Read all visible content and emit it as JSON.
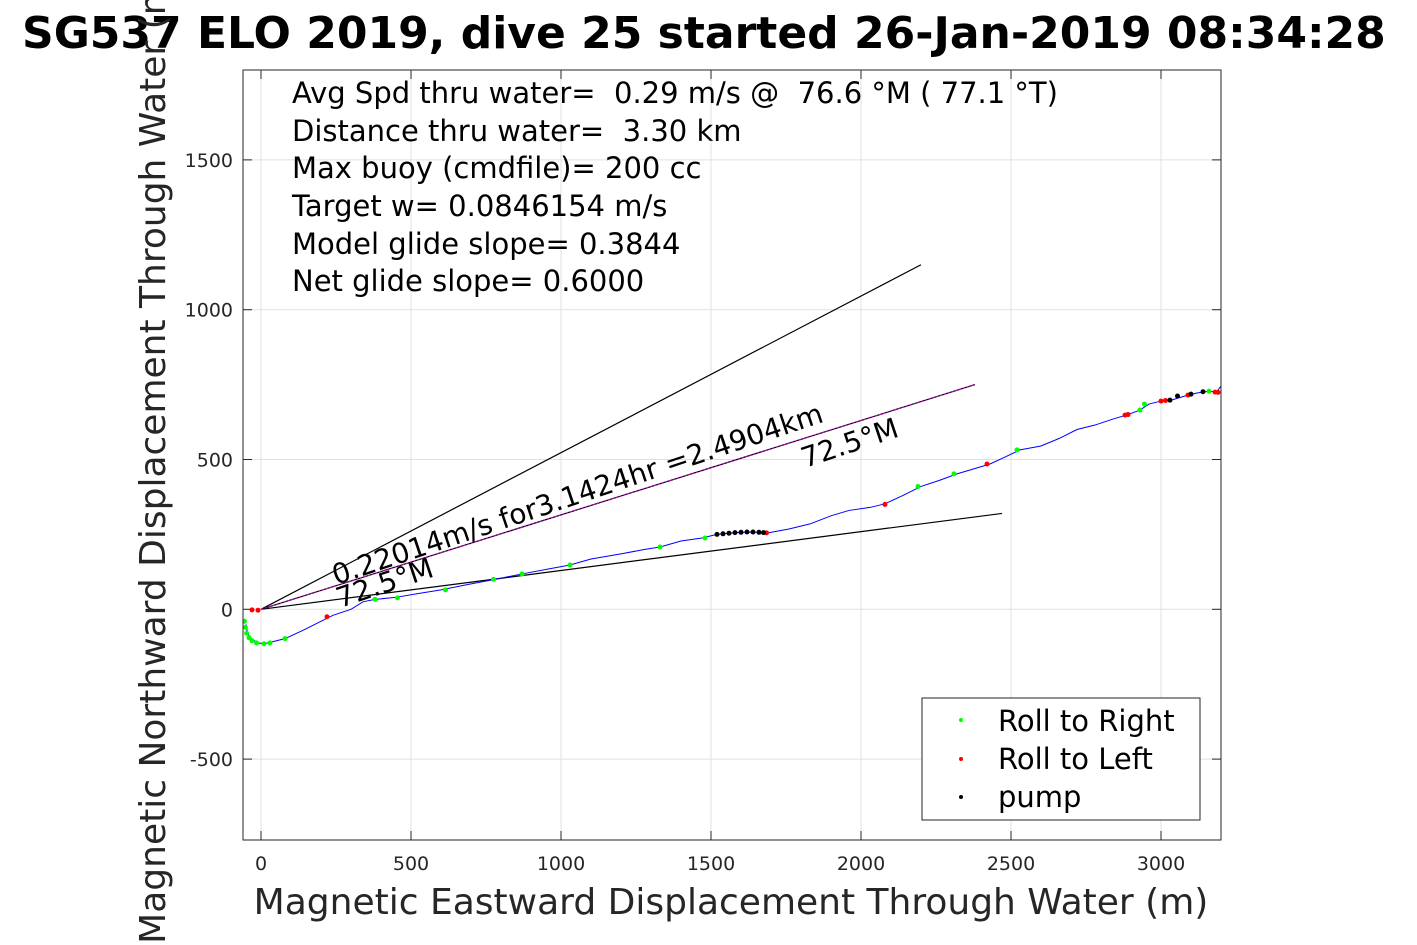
{
  "chart_data": {
    "type": "scatter",
    "title": "SG537 ELO 2019, dive 25 started 26-Jan-2019 08:34:28",
    "xlabel": "Magnetic Eastward Displacement Through Water (m)",
    "ylabel": "Magnetic Northward Displacement Through Water (m)",
    "xlim": [
      -60,
      3200
    ],
    "ylim": [
      -770,
      1800
    ],
    "xticks": [
      0,
      500,
      1000,
      1500,
      2000,
      2500,
      3000
    ],
    "yticks": [
      -500,
      0,
      500,
      1000,
      1500
    ],
    "xtick_labels": [
      "0",
      "500",
      "1000",
      "1500",
      "2000",
      "2500",
      "3000"
    ],
    "ytick_labels": [
      "-500",
      "0",
      "500",
      "1000",
      "1500"
    ],
    "grid": true,
    "legend_position": "bottom-right",
    "info_lines": [
      "Avg Spd thru water=  0.29 m/s @  76.6 °M ( 77.1 °T)",
      "Distance thru water=  3.30 km",
      "Max buoy (cmdfile)= 200 cc",
      "Target w= 0.0846154 m/s",
      "Model glide slope= 0.3844",
      "Net glide slope= 0.6000"
    ],
    "annotations": {
      "speed_text": "0.22014m/s for3.1424hr =2.4904km",
      "heading_upper": "72.5°M",
      "heading_lower": "72.5°M"
    },
    "reference_lines": [
      {
        "name": "upper-bound",
        "color": "#000000",
        "points": [
          [
            0,
            0
          ],
          [
            2200,
            1150
          ]
        ]
      },
      {
        "name": "lower-bound",
        "color": "#000000",
        "points": [
          [
            0,
            0
          ],
          [
            2470,
            320
          ]
        ]
      },
      {
        "name": "heading-line",
        "color": "#000000",
        "points": [
          [
            0,
            0
          ],
          [
            2380,
            750
          ]
        ]
      },
      {
        "name": "heading-line-overlay",
        "color": "#cc00cc",
        "points": [
          [
            0,
            0
          ],
          [
            2380,
            750
          ]
        ]
      }
    ],
    "track": {
      "color": "#0000ff",
      "points": [
        [
          -50,
          -50
        ],
        [
          -45,
          -80
        ],
        [
          -30,
          -100
        ],
        [
          -10,
          -112
        ],
        [
          10,
          -115
        ],
        [
          40,
          -108
        ],
        [
          80,
          -98
        ],
        [
          140,
          -70
        ],
        [
          200,
          -40
        ],
        [
          240,
          -20
        ],
        [
          300,
          0
        ],
        [
          340,
          25
        ],
        [
          380,
          33
        ],
        [
          450,
          40
        ],
        [
          520,
          52
        ],
        [
          600,
          65
        ],
        [
          700,
          85
        ],
        [
          780,
          100
        ],
        [
          870,
          118
        ],
        [
          960,
          135
        ],
        [
          1030,
          148
        ],
        [
          1100,
          168
        ],
        [
          1200,
          185
        ],
        [
          1280,
          200
        ],
        [
          1330,
          208
        ],
        [
          1400,
          228
        ],
        [
          1470,
          238
        ],
        [
          1520,
          250
        ],
        [
          1580,
          256
        ],
        [
          1640,
          258
        ],
        [
          1690,
          255
        ],
        [
          1760,
          268
        ],
        [
          1830,
          285
        ],
        [
          1900,
          312
        ],
        [
          1960,
          330
        ],
        [
          2030,
          340
        ],
        [
          2080,
          352
        ],
        [
          2140,
          380
        ],
        [
          2200,
          410
        ],
        [
          2260,
          430
        ],
        [
          2320,
          452
        ],
        [
          2380,
          470
        ],
        [
          2430,
          485
        ],
        [
          2480,
          508
        ],
        [
          2530,
          532
        ],
        [
          2600,
          545
        ],
        [
          2660,
          570
        ],
        [
          2720,
          600
        ],
        [
          2780,
          615
        ],
        [
          2840,
          635
        ],
        [
          2890,
          650
        ],
        [
          2930,
          665
        ],
        [
          2960,
          685
        ],
        [
          3000,
          695
        ],
        [
          3040,
          700
        ],
        [
          3080,
          712
        ],
        [
          3120,
          722
        ],
        [
          3160,
          728
        ],
        [
          3185,
          725
        ],
        [
          3200,
          745
        ],
        [
          3210,
          760
        ]
      ]
    },
    "series": [
      {
        "name": "Roll to Right",
        "color": "#00ff00",
        "x": [
          -55,
          -52,
          -48,
          -40,
          -30,
          -15,
          10,
          30,
          80,
          380,
          455,
          615,
          775,
          870,
          1030,
          1330,
          1480,
          2190,
          2310,
          2520,
          2930,
          2945,
          3160,
          3210
        ],
        "y": [
          -40,
          -60,
          -80,
          -95,
          -105,
          -112,
          -115,
          -112,
          -98,
          33,
          38,
          65,
          100,
          118,
          148,
          208,
          238,
          410,
          452,
          532,
          665,
          685,
          728,
          760
        ]
      },
      {
        "name": "Roll to Left",
        "color": "#ff0000",
        "x": [
          -30,
          -10,
          220,
          1685,
          2080,
          2420,
          2880,
          2890,
          3000,
          3015,
          3090,
          3180,
          3190
        ],
        "y": [
          -2,
          -3,
          -25,
          255,
          350,
          485,
          648,
          650,
          695,
          697,
          715,
          725,
          724
        ]
      },
      {
        "name": "pump",
        "color": "#000000",
        "x": [
          1520,
          1540,
          1560,
          1580,
          1600,
          1620,
          1640,
          1660,
          1675,
          3030,
          3055,
          3100,
          3140
        ],
        "y": [
          250,
          252,
          254,
          256,
          257,
          258,
          258,
          257,
          256,
          698,
          712,
          718,
          726
        ]
      }
    ]
  }
}
